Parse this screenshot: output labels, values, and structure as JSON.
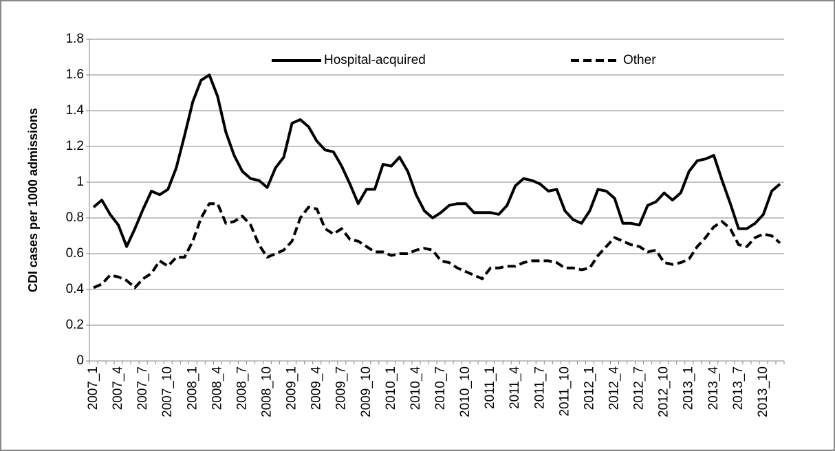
{
  "chart_data": {
    "type": "line",
    "y_label": "CDI cases per 1000 admissions",
    "categories": [
      "2007_1",
      null,
      null,
      "2007_4",
      null,
      null,
      "2007_7",
      null,
      null,
      "2007_10",
      null,
      null,
      "2008_1",
      null,
      null,
      "2008_4",
      null,
      null,
      "2008_7",
      null,
      null,
      "2008_10",
      null,
      null,
      "2009_1",
      null,
      null,
      "2009_4",
      null,
      null,
      "2009_7",
      null,
      null,
      "2009_10",
      null,
      null,
      "2010_1",
      null,
      null,
      "2010_4",
      null,
      null,
      "2010_7",
      null,
      null,
      "2010_10",
      null,
      null,
      "2011_1",
      null,
      null,
      "2011_4",
      null,
      null,
      "2011_7",
      null,
      null,
      "2011_10",
      null,
      null,
      "2012_1",
      null,
      null,
      "2012_4",
      null,
      null,
      "2012_7",
      null,
      null,
      "2012_10",
      null,
      null,
      "2013_1",
      null,
      null,
      "2013_4",
      null,
      null,
      "2013_7",
      null,
      null,
      "2013_10",
      null,
      null
    ],
    "series": [
      {
        "name": "Hospital-acquired",
        "color": "#000000",
        "dash": "solid",
        "values": [
          0.86,
          0.9,
          0.82,
          0.76,
          0.64,
          0.74,
          0.85,
          0.95,
          0.93,
          0.96,
          1.08,
          1.26,
          1.45,
          1.57,
          1.6,
          1.48,
          1.28,
          1.15,
          1.06,
          1.02,
          1.01,
          0.97,
          1.08,
          1.14,
          1.33,
          1.35,
          1.31,
          1.23,
          1.18,
          1.17,
          1.09,
          0.99,
          0.88,
          0.96,
          0.96,
          1.1,
          1.09,
          1.14,
          1.06,
          0.93,
          0.84,
          0.8,
          0.83,
          0.87,
          0.88,
          0.88,
          0.83,
          0.83,
          0.83,
          0.82,
          0.87,
          0.98,
          1.02,
          1.01,
          0.99,
          0.95,
          0.96,
          0.84,
          0.79,
          0.77,
          0.84,
          0.96,
          0.95,
          0.91,
          0.77,
          0.77,
          0.76,
          0.87,
          0.89,
          0.94,
          0.9,
          0.94,
          1.06,
          1.12,
          1.13,
          1.15,
          1.01,
          0.88,
          0.74,
          0.74,
          0.77,
          0.82,
          0.95,
          0.99
        ]
      },
      {
        "name": "Other",
        "color": "#000000",
        "dash": "dashed",
        "values": [
          0.41,
          0.43,
          0.48,
          0.47,
          0.45,
          0.41,
          0.46,
          0.49,
          0.56,
          0.53,
          0.58,
          0.58,
          0.67,
          0.8,
          0.88,
          0.88,
          0.77,
          0.78,
          0.81,
          0.76,
          0.65,
          0.58,
          0.6,
          0.62,
          0.67,
          0.8,
          0.86,
          0.85,
          0.74,
          0.71,
          0.74,
          0.68,
          0.67,
          0.64,
          0.61,
          0.61,
          0.59,
          0.6,
          0.6,
          0.62,
          0.63,
          0.62,
          0.56,
          0.55,
          0.52,
          0.5,
          0.48,
          0.46,
          0.52,
          0.52,
          0.53,
          0.53,
          0.55,
          0.56,
          0.56,
          0.56,
          0.55,
          0.52,
          0.52,
          0.51,
          0.52,
          0.59,
          0.64,
          0.69,
          0.67,
          0.65,
          0.64,
          0.61,
          0.62,
          0.55,
          0.54,
          0.55,
          0.57,
          0.64,
          0.69,
          0.75,
          0.78,
          0.74,
          0.65,
          0.64,
          0.69,
          0.71,
          0.7,
          0.66
        ]
      }
    ],
    "ylim": [
      0,
      1.8
    ],
    "yticks": [
      0,
      0.2,
      0.4,
      0.6,
      0.8,
      1,
      1.2,
      1.4,
      1.6,
      1.8
    ],
    "grid": true,
    "legend": "top"
  }
}
